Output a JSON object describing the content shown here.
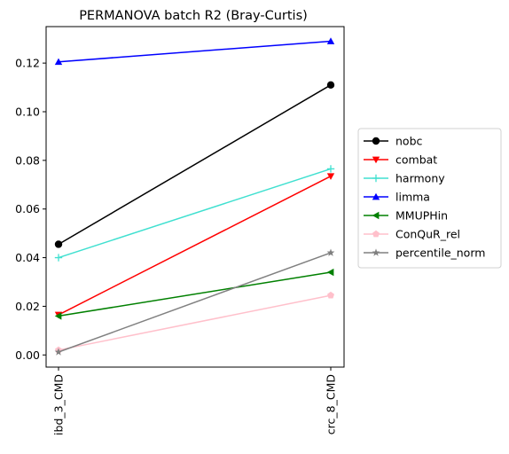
{
  "chart_data": {
    "type": "line",
    "title": "PERMANOVA batch R2 (Bray-Curtis)",
    "xlabel": "",
    "ylabel": "",
    "categories": [
      "ibd_3_CMD",
      "crc_8_CMD"
    ],
    "ylim": [
      -0.005,
      0.135
    ],
    "yticks": [
      0.0,
      0.02,
      0.04,
      0.06,
      0.08,
      0.1,
      0.12
    ],
    "ytick_labels": [
      "0.00",
      "0.02",
      "0.04",
      "0.06",
      "0.08",
      "0.10",
      "0.12"
    ],
    "grid": false,
    "legend_position": "right",
    "series": [
      {
        "name": "nobc",
        "values": [
          0.0455,
          0.111
        ],
        "color": "#000000",
        "marker": "circle"
      },
      {
        "name": "combat",
        "values": [
          0.0165,
          0.0735
        ],
        "color": "#ff0000",
        "marker": "triangle-down"
      },
      {
        "name": "harmony",
        "values": [
          0.04,
          0.0765
        ],
        "color": "#40e0d0",
        "marker": "plus"
      },
      {
        "name": "limma",
        "values": [
          0.1205,
          0.129
        ],
        "color": "#0000ff",
        "marker": "triangle-up"
      },
      {
        "name": "MMUPHin",
        "values": [
          0.016,
          0.034
        ],
        "color": "#008000",
        "marker": "triangle-left"
      },
      {
        "name": "ConQuR_rel",
        "values": [
          0.002,
          0.0245
        ],
        "color": "#ffc0cb",
        "marker": "pentagon"
      },
      {
        "name": "percentile_norm",
        "values": [
          0.0012,
          0.042
        ],
        "color": "#808080",
        "marker": "star"
      }
    ]
  }
}
